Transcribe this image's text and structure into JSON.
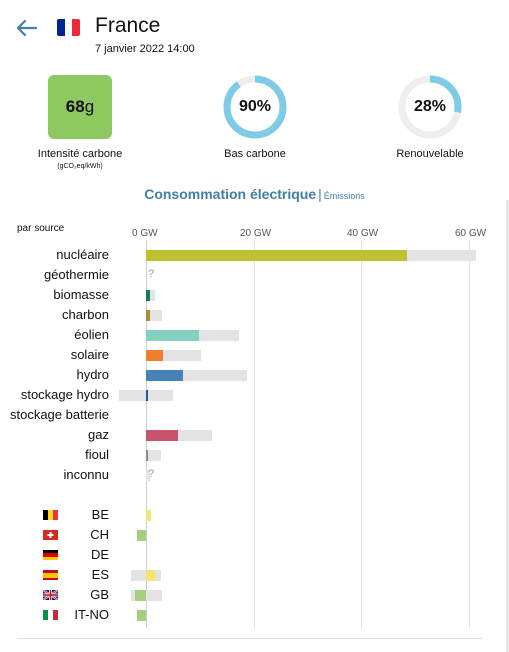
{
  "header": {
    "zone_name": "France",
    "datetime": "7 janvier 2022 14:00",
    "flag_colors": [
      "#002395",
      "#ffffff",
      "#ed2939"
    ]
  },
  "metrics": {
    "carbon_value": "68",
    "carbon_unit": "g",
    "carbon_label": "Intensité carbone",
    "carbon_sublabel": "(gCO₂eq/kWh)",
    "carbon_color": "#8dc860",
    "low_carbon_value": "90%",
    "low_carbon_fraction": 0.9,
    "low_carbon_label": "Bas carbone",
    "renewable_value": "28%",
    "renewable_fraction": 0.28,
    "renewable_label": "Renouvelable",
    "ring_color": "#7ecbe6",
    "ring_track_color": "#eeeeee"
  },
  "tabs": {
    "active": "Consommation électrique",
    "separator": "|",
    "other": "Émissions"
  },
  "chart_data": {
    "type": "bar",
    "orientation": "horizontal",
    "title": "par source",
    "unit": "GW",
    "xlim": [
      0,
      60
    ],
    "ticks": [
      "0 GW",
      "20 GW",
      "40 GW",
      "60 GW"
    ],
    "tick_values": [
      0,
      20,
      40,
      60
    ],
    "sources": [
      {
        "label": "nucléaire",
        "value": 48.5,
        "capacity_min": 0,
        "capacity_max": 61.4,
        "color": "#bec12f",
        "unknown": false
      },
      {
        "label": "géothermie",
        "value": 0,
        "capacity_min": 0,
        "capacity_max": 0,
        "color": "#c0c0c0",
        "unknown": true
      },
      {
        "label": "biomasse",
        "value": 0.8,
        "capacity_min": 0,
        "capacity_max": 1.6,
        "color": "#167c5a",
        "unknown": false
      },
      {
        "label": "charbon",
        "value": 0.7,
        "capacity_min": 0,
        "capacity_max": 3.0,
        "color": "#ac8c35",
        "unknown": false
      },
      {
        "label": "éolien",
        "value": 9.9,
        "capacity_min": 0,
        "capacity_max": 17.3,
        "color": "#83cfc1",
        "unknown": false
      },
      {
        "label": "solaire",
        "value": 3.2,
        "capacity_min": 0,
        "capacity_max": 10.3,
        "color": "#f27d30",
        "unknown": false
      },
      {
        "label": "hydro",
        "value": 6.8,
        "capacity_min": 0,
        "capacity_max": 18.8,
        "color": "#4782b6",
        "unknown": false
      },
      {
        "label": "stockage hydro",
        "value": 0.2,
        "capacity_min": -5.0,
        "capacity_max": 5.0,
        "color": "#1f5a9c",
        "unknown": false
      },
      {
        "label": "stockage batterie",
        "value": 0,
        "capacity_min": 0,
        "capacity_max": 0,
        "color": "#c0c0c0",
        "unknown": false
      },
      {
        "label": "gaz",
        "value": 6.0,
        "capacity_min": 0,
        "capacity_max": 12.2,
        "color": "#c6536b",
        "unknown": false
      },
      {
        "label": "fioul",
        "value": 0.2,
        "capacity_min": 0,
        "capacity_max": 2.8,
        "color": "#8b8b8b",
        "unknown": false
      },
      {
        "label": "inconnu",
        "value": 0,
        "capacity_min": 0,
        "capacity_max": 0.7,
        "color": "#c0c0c0",
        "unknown": true
      }
    ],
    "exchanges": [
      {
        "label": "BE",
        "value": 0.9,
        "capacity_min": 0,
        "capacity_max": 0.9,
        "color": "#f4e56e"
      },
      {
        "label": "CH",
        "value": -1.6,
        "capacity_min": -1.6,
        "capacity_max": 0,
        "color": "#a4cf7e"
      },
      {
        "label": "DE",
        "value": 0,
        "capacity_min": 0,
        "capacity_max": 0,
        "color": "#c0c0c0"
      },
      {
        "label": "ES",
        "value": 1.6,
        "capacity_min": -2.8,
        "capacity_max": 2.8,
        "color": "#f4e56e"
      },
      {
        "label": "GB",
        "value": -2.0,
        "capacity_min": -2.8,
        "capacity_max": 3.0,
        "color": "#a4cf7e"
      },
      {
        "label": "IT-NO",
        "value": -1.6,
        "capacity_min": -1.6,
        "capacity_max": 0,
        "color": "#a4cf7e"
      }
    ],
    "capacity_color": "#e3e3e3",
    "grid": true
  }
}
